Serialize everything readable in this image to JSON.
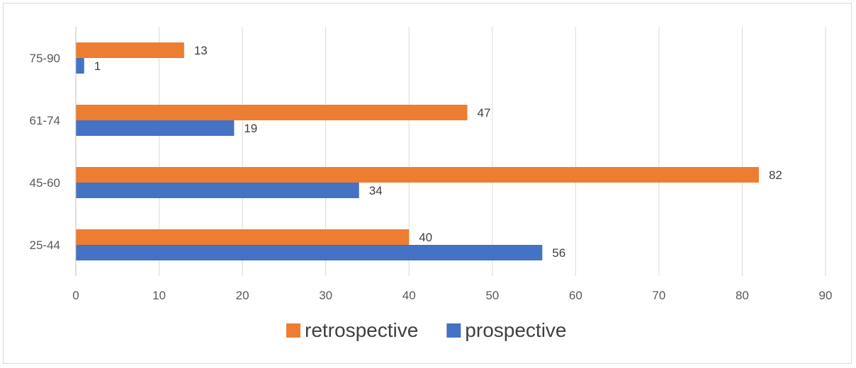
{
  "chart_data": {
    "type": "bar",
    "orientation": "horizontal",
    "categories": [
      "25-44",
      "45-60",
      "61-74",
      "75-90"
    ],
    "series": [
      {
        "name": "prospective",
        "values": [
          56,
          34,
          19,
          1
        ],
        "color": "#4472c4"
      },
      {
        "name": "retrospective",
        "values": [
          40,
          82,
          47,
          13
        ],
        "color": "#ed7d31"
      }
    ],
    "xlim": [
      0,
      90
    ],
    "xticks": [
      0,
      10,
      20,
      30,
      40,
      50,
      60,
      70,
      80,
      90
    ],
    "grid": "vertical",
    "legend": {
      "position": "bottom",
      "order": [
        "retrospective",
        "prospective"
      ]
    },
    "title": "",
    "xlabel": "",
    "ylabel": ""
  }
}
